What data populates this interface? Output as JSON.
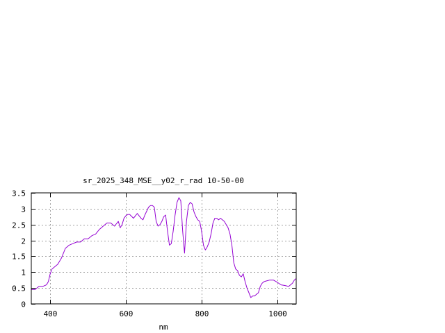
{
  "chart_data": {
    "type": "line",
    "title": "sr_2025_348_MSE__y02_r_rad 10-50-00",
    "xlabel": "nm",
    "ylabel": "",
    "xlim": [
      350,
      1050
    ],
    "ylim": [
      0,
      3.5
    ],
    "x_ticks": [
      400,
      600,
      800,
      1000
    ],
    "x_tick_labels": [
      "400",
      "600",
      "800",
      "1000"
    ],
    "y_ticks": [
      0,
      0.5,
      1,
      1.5,
      2,
      2.5,
      3,
      3.5
    ],
    "y_tick_labels": [
      "0",
      "0.5",
      "1",
      "1.5",
      "2",
      "2.5",
      "3",
      "3.5"
    ],
    "grid": true,
    "legend": "none",
    "series": [
      {
        "color": "#9400d3",
        "x": [
          350,
          360,
          370,
          380,
          390,
          395,
          400,
          405,
          410,
          420,
          430,
          440,
          450,
          460,
          470,
          480,
          490,
          500,
          510,
          520,
          530,
          540,
          550,
          560,
          570,
          580,
          585,
          590,
          595,
          600,
          605,
          610,
          620,
          630,
          640,
          645,
          650,
          660,
          665,
          670,
          675,
          680,
          685,
          690,
          695,
          700,
          705,
          710,
          715,
          720,
          725,
          730,
          735,
          740,
          745,
          750,
          755,
          760,
          765,
          770,
          775,
          780,
          785,
          790,
          795,
          800,
          805,
          810,
          815,
          820,
          825,
          830,
          835,
          840,
          845,
          850,
          855,
          860,
          865,
          870,
          875,
          880,
          885,
          890,
          895,
          900,
          905,
          910,
          915,
          920,
          925,
          930,
          935,
          940,
          945,
          950,
          955,
          960,
          965,
          970,
          980,
          990,
          1000,
          1010,
          1020,
          1030,
          1035,
          1040,
          1045,
          1050
        ],
        "y": [
          0.45,
          0.45,
          0.55,
          0.55,
          0.6,
          0.7,
          0.95,
          1.1,
          1.15,
          1.25,
          1.45,
          1.75,
          1.85,
          1.9,
          1.95,
          1.95,
          2.05,
          2.05,
          2.15,
          2.2,
          2.35,
          2.45,
          2.55,
          2.55,
          2.45,
          2.6,
          2.4,
          2.5,
          2.7,
          2.78,
          2.82,
          2.82,
          2.7,
          2.85,
          2.7,
          2.65,
          2.8,
          3.05,
          3.1,
          3.1,
          3.05,
          2.6,
          2.45,
          2.5,
          2.6,
          2.75,
          2.8,
          2.3,
          1.85,
          1.9,
          2.3,
          2.8,
          3.2,
          3.35,
          3.25,
          2.3,
          1.6,
          2.6,
          3.1,
          3.2,
          3.15,
          2.9,
          2.75,
          2.65,
          2.6,
          2.3,
          1.85,
          1.7,
          1.8,
          1.95,
          2.2,
          2.55,
          2.7,
          2.7,
          2.65,
          2.7,
          2.65,
          2.6,
          2.5,
          2.4,
          2.2,
          1.85,
          1.3,
          1.1,
          1.05,
          0.9,
          0.85,
          0.95,
          0.7,
          0.5,
          0.35,
          0.2,
          0.25,
          0.25,
          0.3,
          0.35,
          0.55,
          0.65,
          0.7,
          0.72,
          0.75,
          0.75,
          0.68,
          0.6,
          0.58,
          0.55,
          0.6,
          0.65,
          0.75,
          0.8
        ]
      }
    ]
  }
}
